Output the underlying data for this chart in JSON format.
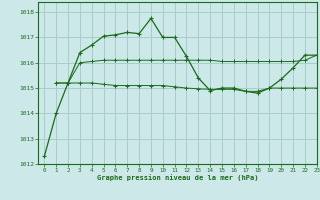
{
  "title": "Graphe pression niveau de la mer (hPa)",
  "background_color": "#cce8e8",
  "grid_color": "#aacccc",
  "line_color": "#1a6b1a",
  "xlim": [
    -0.5,
    23
  ],
  "ylim": [
    1012,
    1018.4
  ],
  "yticks": [
    1012,
    1013,
    1014,
    1015,
    1016,
    1017,
    1018
  ],
  "xticks": [
    0,
    1,
    2,
    3,
    4,
    5,
    6,
    7,
    8,
    9,
    10,
    11,
    12,
    13,
    14,
    15,
    16,
    17,
    18,
    19,
    20,
    21,
    22,
    23
  ],
  "series1_x": [
    0,
    1,
    2,
    3,
    4,
    5,
    6,
    7,
    8,
    9,
    10,
    11,
    12,
    13,
    14,
    15,
    16,
    17,
    18,
    19,
    20,
    21,
    22,
    23
  ],
  "series1_y": [
    1012.3,
    1014.0,
    1015.2,
    1016.4,
    1016.7,
    1017.05,
    1017.1,
    1017.2,
    1017.15,
    1017.75,
    1017.0,
    1017.0,
    1016.25,
    1015.4,
    1014.9,
    1015.0,
    1015.0,
    1014.87,
    1014.8,
    1015.0,
    1015.35,
    1015.8,
    1016.3,
    1016.3
  ],
  "series2_x": [
    1,
    2,
    3,
    4,
    5,
    6,
    7,
    8,
    9,
    10,
    11,
    12,
    13,
    14,
    15,
    16,
    17,
    18,
    19,
    20,
    21,
    22,
    23
  ],
  "series2_y": [
    1015.2,
    1015.2,
    1016.0,
    1016.05,
    1016.1,
    1016.1,
    1016.1,
    1016.1,
    1016.1,
    1016.1,
    1016.1,
    1016.1,
    1016.1,
    1016.1,
    1016.05,
    1016.05,
    1016.05,
    1016.05,
    1016.05,
    1016.05,
    1016.05,
    1016.1,
    1016.3
  ],
  "series3_x": [
    1,
    2,
    3,
    4,
    5,
    6,
    7,
    8,
    9,
    10,
    11,
    12,
    13,
    14,
    15,
    16,
    17,
    18,
    19,
    20,
    21,
    22,
    23
  ],
  "series3_y": [
    1015.2,
    1015.2,
    1015.2,
    1015.2,
    1015.15,
    1015.1,
    1015.1,
    1015.1,
    1015.1,
    1015.1,
    1015.05,
    1015.0,
    1014.97,
    1014.95,
    1014.95,
    1014.95,
    1014.87,
    1014.87,
    1015.0,
    1015.0,
    1015.0,
    1015.0,
    1015.0
  ]
}
